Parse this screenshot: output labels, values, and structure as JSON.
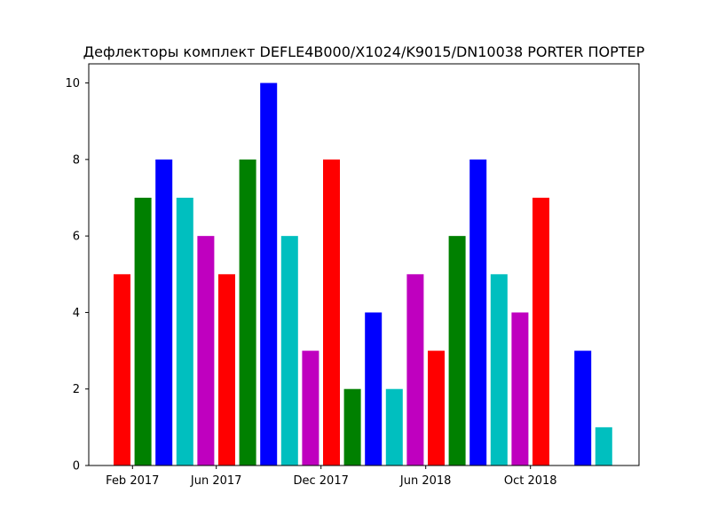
{
  "chart_data": {
    "type": "bar",
    "title": "Дефлекторы  комплект DEFLE4B000/X1024/K9015/DN10038 PORTER ПОРТЕР",
    "xlabel": "",
    "ylabel": "",
    "ylim": [
      0,
      10.5
    ],
    "yticks": [
      0,
      2,
      4,
      6,
      8,
      10
    ],
    "x_tick_labels": [
      {
        "label": "Feb 2017",
        "after_bar": 0
      },
      {
        "label": "Jun 2017",
        "after_bar": 4
      },
      {
        "label": "Dec 2017",
        "after_bar": 9
      },
      {
        "label": "Jun 2018",
        "after_bar": 14
      },
      {
        "label": "Oct 2018",
        "after_bar": 19
      }
    ],
    "bars": [
      {
        "value": 5,
        "color": "#ff0000"
      },
      {
        "value": 7,
        "color": "#008000"
      },
      {
        "value": 8,
        "color": "#0000ff"
      },
      {
        "value": 7,
        "color": "#00bfbf"
      },
      {
        "value": 6,
        "color": "#bf00bf"
      },
      {
        "value": 5,
        "color": "#ff0000"
      },
      {
        "value": 8,
        "color": "#008000"
      },
      {
        "value": 10,
        "color": "#0000ff"
      },
      {
        "value": 6,
        "color": "#00bfbf"
      },
      {
        "value": 3,
        "color": "#bf00bf"
      },
      {
        "value": 8,
        "color": "#ff0000"
      },
      {
        "value": 2,
        "color": "#008000"
      },
      {
        "value": 4,
        "color": "#0000ff"
      },
      {
        "value": 2,
        "color": "#00bfbf"
      },
      {
        "value": 5,
        "color": "#bf00bf"
      },
      {
        "value": 3,
        "color": "#ff0000"
      },
      {
        "value": 6,
        "color": "#008000"
      },
      {
        "value": 8,
        "color": "#0000ff"
      },
      {
        "value": 5,
        "color": "#00bfbf"
      },
      {
        "value": 4,
        "color": "#bf00bf"
      },
      {
        "value": 7,
        "color": "#ff0000"
      },
      {
        "value": 0,
        "color": "#008000"
      },
      {
        "value": 3,
        "color": "#0000ff"
      },
      {
        "value": 1,
        "color": "#00bfbf"
      }
    ],
    "grid": false,
    "legend": "none"
  }
}
